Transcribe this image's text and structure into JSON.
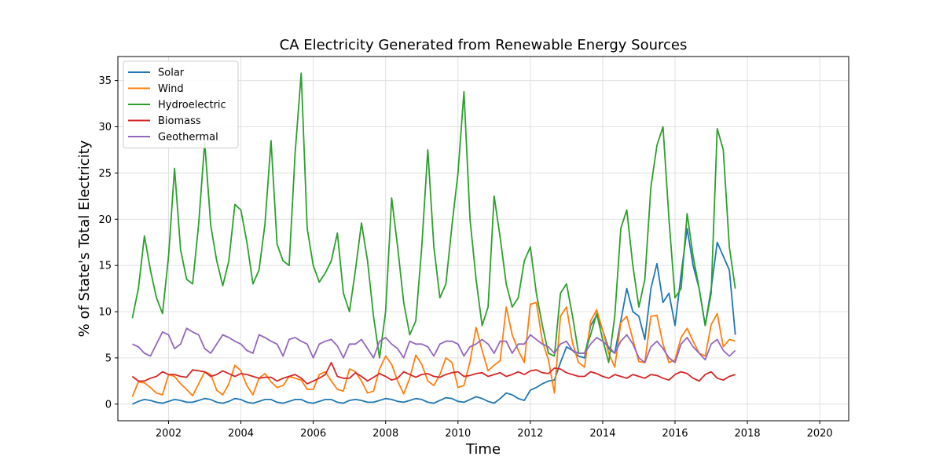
{
  "chart_data": {
    "type": "line",
    "title": "CA Electricity Generated from Renewable Energy Sources",
    "xlabel": "Time",
    "ylabel": "% of State's Total Electricity",
    "xlim": [
      2000.6,
      2020.8
    ],
    "ylim": [
      -1.8,
      37.6
    ],
    "x_ticks": [
      2002,
      2004,
      2006,
      2008,
      2010,
      2012,
      2014,
      2016,
      2018,
      2020
    ],
    "y_ticks": [
      0,
      5,
      10,
      15,
      20,
      25,
      30,
      35
    ],
    "grid": true,
    "legend_position": "upper-left",
    "x_start_year": 2001,
    "x_step_months": 2,
    "series": [
      {
        "name": "Solar",
        "color": "#1f77b4",
        "values": [
          0.0,
          0.3,
          0.5,
          0.4,
          0.2,
          0.1,
          0.3,
          0.5,
          0.4,
          0.2,
          0.2,
          0.4,
          0.6,
          0.5,
          0.2,
          0.1,
          0.3,
          0.6,
          0.5,
          0.2,
          0.1,
          0.3,
          0.5,
          0.5,
          0.2,
          0.1,
          0.3,
          0.5,
          0.5,
          0.2,
          0.1,
          0.3,
          0.5,
          0.5,
          0.2,
          0.1,
          0.4,
          0.5,
          0.4,
          0.2,
          0.2,
          0.4,
          0.6,
          0.5,
          0.3,
          0.2,
          0.4,
          0.6,
          0.5,
          0.2,
          0.1,
          0.4,
          0.7,
          0.6,
          0.3,
          0.2,
          0.5,
          0.8,
          0.6,
          0.3,
          0.1,
          0.6,
          1.2,
          1.0,
          0.6,
          0.4,
          1.5,
          1.8,
          2.2,
          2.5,
          2.6,
          4.5,
          6.2,
          5.8,
          5.2,
          5.0,
          8.5,
          9.6,
          8.0,
          6.0,
          5.5,
          9.0,
          12.5,
          10.0,
          9.5,
          7.0,
          12.5,
          15.2,
          11.0,
          12.0,
          8.5,
          14.0,
          19.0,
          15.0,
          12.5,
          8.5,
          12.5,
          17.5,
          16.0,
          14.5,
          7.5
        ]
      },
      {
        "name": "Wind",
        "color": "#ff7f0e",
        "values": [
          0.8,
          2.4,
          2.3,
          1.8,
          1.2,
          1.0,
          3.2,
          3.0,
          2.2,
          1.6,
          0.9,
          2.2,
          3.5,
          3.2,
          1.5,
          1.0,
          2.2,
          4.2,
          3.6,
          2.0,
          1.0,
          2.8,
          3.3,
          2.4,
          1.8,
          2.0,
          3.0,
          2.8,
          2.6,
          1.6,
          1.6,
          3.2,
          3.5,
          2.5,
          1.6,
          1.4,
          3.8,
          3.5,
          2.5,
          1.2,
          1.4,
          3.8,
          5.2,
          4.3,
          2.5,
          1.1,
          2.8,
          5.3,
          4.3,
          2.5,
          2.0,
          3.2,
          5.0,
          4.5,
          1.8,
          2.0,
          4.6,
          8.3,
          5.8,
          3.6,
          4.2,
          4.7,
          10.5,
          7.5,
          5.8,
          4.5,
          10.8,
          11.0,
          6.8,
          4.8,
          1.2,
          9.5,
          10.5,
          6.6,
          4.5,
          4.0,
          9.0,
          10.2,
          8.0,
          5.5,
          4.0,
          8.8,
          9.5,
          7.0,
          4.6,
          4.5,
          9.5,
          9.6,
          6.5,
          4.5,
          4.8,
          7.2,
          8.2,
          6.8,
          5.5,
          5.2,
          8.6,
          9.8,
          6.2,
          7.0,
          6.8
        ]
      },
      {
        "name": "Hydroelectric",
        "color": "#2ca02c",
        "values": [
          9.3,
          12.5,
          18.2,
          14.5,
          11.5,
          9.8,
          16.0,
          25.5,
          16.7,
          13.5,
          13.0,
          19.5,
          28.3,
          19.3,
          15.5,
          12.8,
          15.5,
          21.6,
          21.0,
          17.5,
          13.0,
          14.5,
          19.5,
          28.5,
          17.3,
          15.5,
          15.0,
          27.2,
          35.8,
          19.0,
          15.0,
          13.2,
          14.2,
          15.5,
          18.5,
          12.0,
          10.0,
          14.5,
          19.6,
          15.5,
          9.5,
          5.0,
          10.0,
          22.3,
          17.0,
          11.0,
          7.5,
          9.0,
          17.0,
          27.5,
          17.0,
          11.5,
          13.0,
          19.3,
          25.0,
          33.8,
          20.0,
          13.5,
          8.5,
          10.5,
          22.5,
          18.0,
          13.0,
          10.5,
          11.5,
          15.5,
          17.0,
          12.0,
          8.5,
          5.5,
          5.2,
          12.0,
          13.0,
          9.5,
          5.5,
          5.5,
          7.5,
          9.8,
          7.0,
          4.5,
          9.5,
          19.0,
          21.0,
          15.0,
          10.5,
          13.5,
          23.5,
          28.0,
          30.0,
          20.0,
          11.5,
          12.5,
          20.6,
          16.0,
          12.5,
          8.5,
          12.0,
          29.8,
          27.5,
          17.0,
          12.5
        ]
      },
      {
        "name": "Biomass",
        "color": "#d62728",
        "values": [
          3.0,
          2.5,
          2.5,
          2.8,
          3.0,
          3.5,
          3.2,
          3.2,
          3.0,
          2.9,
          3.7,
          3.6,
          3.5,
          3.0,
          3.2,
          3.6,
          3.3,
          3.0,
          3.3,
          3.2,
          3.0,
          2.8,
          2.9,
          2.9,
          2.5,
          2.8,
          3.0,
          3.2,
          2.8,
          2.2,
          2.5,
          2.8,
          3.2,
          4.5,
          3.0,
          2.8,
          2.8,
          3.4,
          3.0,
          2.5,
          2.9,
          3.3,
          3.0,
          2.6,
          2.8,
          3.5,
          3.2,
          2.9,
          3.2,
          3.3,
          3.0,
          2.9,
          3.2,
          3.4,
          3.5,
          3.0,
          3.1,
          3.3,
          3.4,
          3.0,
          3.2,
          3.4,
          3.0,
          3.2,
          3.5,
          3.2,
          3.6,
          3.7,
          3.4,
          3.3,
          3.9,
          3.8,
          3.4,
          3.2,
          3.0,
          3.0,
          3.5,
          3.3,
          3.0,
          2.8,
          3.2,
          3.0,
          2.8,
          3.2,
          3.0,
          2.8,
          3.2,
          3.1,
          2.8,
          2.6,
          3.2,
          3.5,
          3.3,
          2.8,
          2.5,
          3.2,
          3.5,
          2.8,
          2.6,
          3.0,
          3.2
        ]
      },
      {
        "name": "Geothermal",
        "color": "#9467bd",
        "values": [
          6.5,
          6.2,
          5.5,
          5.2,
          6.5,
          7.8,
          7.5,
          6.0,
          6.5,
          8.2,
          7.8,
          7.5,
          6.0,
          5.5,
          6.5,
          7.5,
          7.2,
          6.8,
          6.5,
          5.8,
          5.5,
          7.5,
          7.2,
          6.8,
          6.5,
          5.2,
          7.0,
          7.2,
          6.8,
          6.5,
          5.0,
          6.5,
          6.8,
          7.0,
          6.3,
          5.0,
          6.5,
          6.5,
          7.0,
          6.0,
          5.0,
          6.8,
          7.2,
          6.5,
          6.0,
          5.0,
          6.8,
          6.5,
          6.5,
          6.2,
          5.2,
          6.5,
          6.8,
          6.8,
          6.5,
          5.2,
          6.2,
          6.5,
          7.0,
          6.5,
          5.5,
          6.8,
          6.8,
          5.5,
          6.5,
          6.5,
          7.5,
          7.0,
          6.5,
          6.2,
          5.5,
          6.5,
          6.8,
          5.8,
          5.5,
          5.5,
          6.5,
          7.2,
          6.8,
          6.2,
          5.5,
          6.8,
          7.5,
          6.5,
          5.0,
          4.5,
          6.2,
          6.8,
          6.0,
          5.0,
          4.5,
          6.5,
          7.2,
          6.2,
          5.5,
          4.8,
          6.5,
          7.0,
          5.8,
          5.2,
          5.8
        ]
      }
    ]
  }
}
